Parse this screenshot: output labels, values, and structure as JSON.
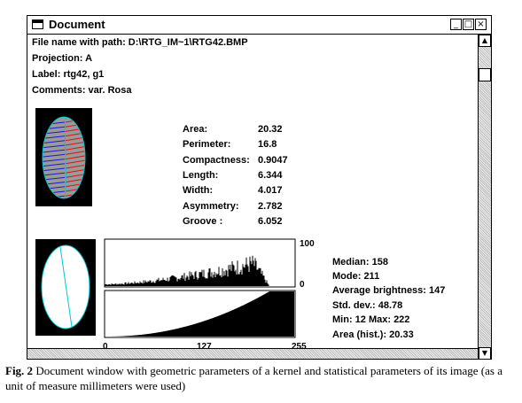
{
  "window": {
    "title": "Document",
    "minimize_glyph": "_",
    "maximize_glyph": "□",
    "close_glyph": "×",
    "scroll_up_glyph": "▲",
    "scroll_down_glyph": "▼"
  },
  "info": {
    "file_line": "File name with path: D:\\RTG_IM~1\\RTG42.BMP",
    "projection": "Projection: A",
    "label": "Label: rtg42, g1",
    "comments": "Comments: var. Rosa"
  },
  "geometry": [
    {
      "name": "Area:",
      "value": "20.32"
    },
    {
      "name": "Perimeter:",
      "value": "16.8"
    },
    {
      "name": "Compactness:",
      "value": "0.9047"
    },
    {
      "name": "Length:",
      "value": "6.344"
    },
    {
      "name": "Width:",
      "value": "4.017"
    },
    {
      "name": "Asymmetry:",
      "value": "2.782"
    },
    {
      "name": "Groove :",
      "value": "6.052"
    }
  ],
  "stats": {
    "median": "Median: 158",
    "mode": "Mode: 211",
    "avg": "Average brightness: 147",
    "std": "Std. dev.: 48.78",
    "minmax": "Min: 12   Max: 222",
    "area": "Area (hist.): 20.33"
  },
  "chart_data": {
    "type": "area",
    "description_panels": [
      "histogram",
      "cumulative"
    ],
    "histogram_ylim_labels": [
      "100",
      "0"
    ],
    "x_tick_labels": [
      "0",
      "127",
      "255"
    ],
    "xlim": [
      0,
      255
    ],
    "histogram_ylim": [
      0,
      100
    ]
  },
  "caption": {
    "fig": "Fig. 2",
    "text": " Document window with geometric parameters of a kernel and statistical parameters of its image (as a unit of measure millimeters were used)"
  },
  "colors": {
    "red_lines": "#d11",
    "blue_lines": "#1a1acc",
    "cyan_outline": "#00c8d8",
    "kernel_fill": "#9a9a9a"
  }
}
